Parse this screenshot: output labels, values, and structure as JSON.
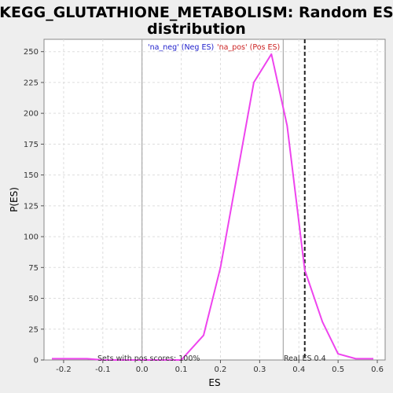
{
  "chart_data": {
    "type": "line",
    "title_line1": "KEGG_GLUTATHIONE_METABOLISM: Random ES",
    "title_line2": "distribution",
    "xlabel": "ES",
    "ylabel": "P(ES)",
    "xlim": [
      -0.25,
      0.62
    ],
    "ylim": [
      0,
      260
    ],
    "x_ticks": [
      -0.2,
      -0.1,
      0.0,
      0.1,
      0.2,
      0.3,
      0.4,
      0.5,
      0.6
    ],
    "x_tick_labels": [
      "-0.2",
      "-0.1",
      "0.0",
      "0.1",
      "0.2",
      "0.3",
      "0.4",
      "0.5",
      "0.6"
    ],
    "y_ticks": [
      0,
      25,
      50,
      75,
      100,
      125,
      150,
      175,
      200,
      225,
      250
    ],
    "y_tick_labels": [
      "0",
      "25",
      "50",
      "75",
      "100",
      "125",
      "150",
      "175",
      "200",
      "225",
      "250"
    ],
    "grid": true,
    "series": [
      {
        "color": "#ee44ee",
        "x": [
          -0.23,
          -0.14,
          -0.1,
          0.1,
          0.157,
          0.2,
          0.285,
          0.33,
          0.37,
          0.415,
          0.46,
          0.5,
          0.545,
          0.59
        ],
        "y": [
          1,
          1,
          0,
          0,
          20,
          75,
          225,
          248,
          190,
          73,
          31,
          5,
          1,
          1
        ]
      }
    ],
    "vertical_lines": [
      {
        "x": 0.0,
        "color": "#999999",
        "style": "solid"
      },
      {
        "x": 0.36,
        "color": "#999999",
        "style": "solid"
      },
      {
        "x": 0.415,
        "color": "#222222",
        "style": "dashed"
      }
    ],
    "annotations": {
      "neg_label": "'na_neg' (Neg ES)",
      "neg_color": "#2222cc",
      "pos_label": "'na_pos' (Pos ES)",
      "pos_color": "#cc2222",
      "sets_label": "Sets with pos scores: 100%",
      "real_es_label": "Real ES 0.4"
    }
  }
}
